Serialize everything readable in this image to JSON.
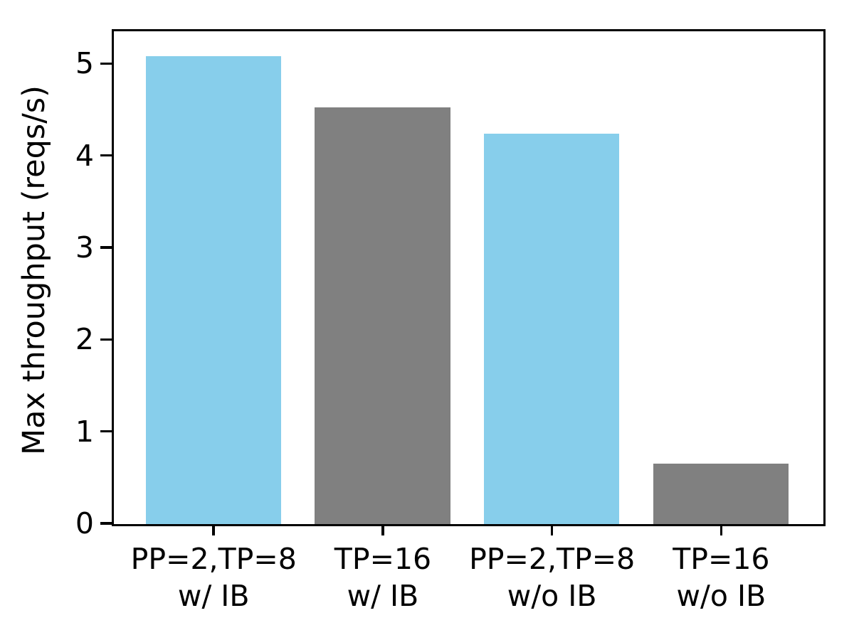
{
  "figure": {
    "background": "#ffffff",
    "title": ""
  },
  "colors": {
    "spine": "#000000",
    "text": "#000000",
    "bar_blue": "#87CEEB",
    "bar_gray": "#808080"
  },
  "chart_data": {
    "type": "bar",
    "title": "",
    "xlabel": "",
    "ylabel": "Max throughput (reqs/s)",
    "categories": [
      "PP=2,TP=8\nw/ IB",
      "TP=16\nw/ IB",
      "PP=2,TP=8\nw/o IB",
      "TP=16\nw/o IB"
    ],
    "values": [
      5.08,
      4.53,
      4.24,
      0.65
    ],
    "bar_colors": [
      "#87CEEB",
      "#808080",
      "#87CEEB",
      "#808080"
    ],
    "bar_width": 0.8,
    "x_positions": [
      0,
      1,
      2,
      3
    ],
    "xlim": [
      -0.59,
      3.6
    ],
    "ylim": [
      0,
      5.35
    ],
    "yticks": [
      0,
      1,
      2,
      3,
      4,
      5
    ],
    "ytick_labels": [
      "0",
      "1",
      "2",
      "3",
      "4",
      "5"
    ],
    "grid": false,
    "legend": null
  }
}
